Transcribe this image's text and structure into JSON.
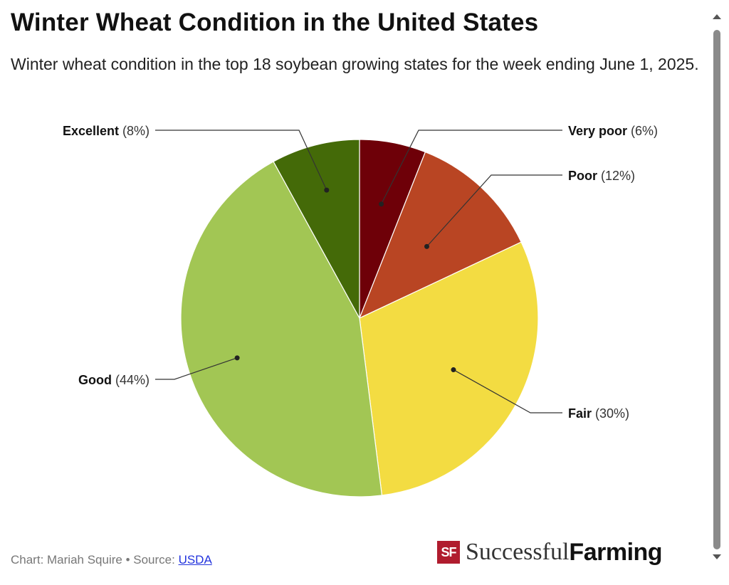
{
  "header": {
    "title": "Winter Wheat Condition in the United States",
    "subtitle": "Winter wheat condition in the top 18 soybean growing states for the week ending June 1, 2025."
  },
  "footer": {
    "credit": "Chart: Mariah Squire • Source: ",
    "source_link": "USDA"
  },
  "logo": {
    "part1": "Successful",
    "part2": "Farming",
    "mark": "SF"
  },
  "chart_data": {
    "type": "pie",
    "start_angle_deg": 0,
    "direction": "clockwise",
    "legend": "direct-labels",
    "slices": [
      {
        "label": "Very poor",
        "value": 6,
        "value_label": "(6%)",
        "color": "#6e0008"
      },
      {
        "label": "Poor",
        "value": 12,
        "value_label": "(12%)",
        "color": "#b94523"
      },
      {
        "label": "Fair",
        "value": 30,
        "value_label": "(30%)",
        "color": "#f3dc42"
      },
      {
        "label": "Good",
        "value": 44,
        "value_label": "(44%)",
        "color": "#a2c654"
      },
      {
        "label": "Excellent",
        "value": 8,
        "value_label": "(8%)",
        "color": "#446a08"
      }
    ]
  }
}
